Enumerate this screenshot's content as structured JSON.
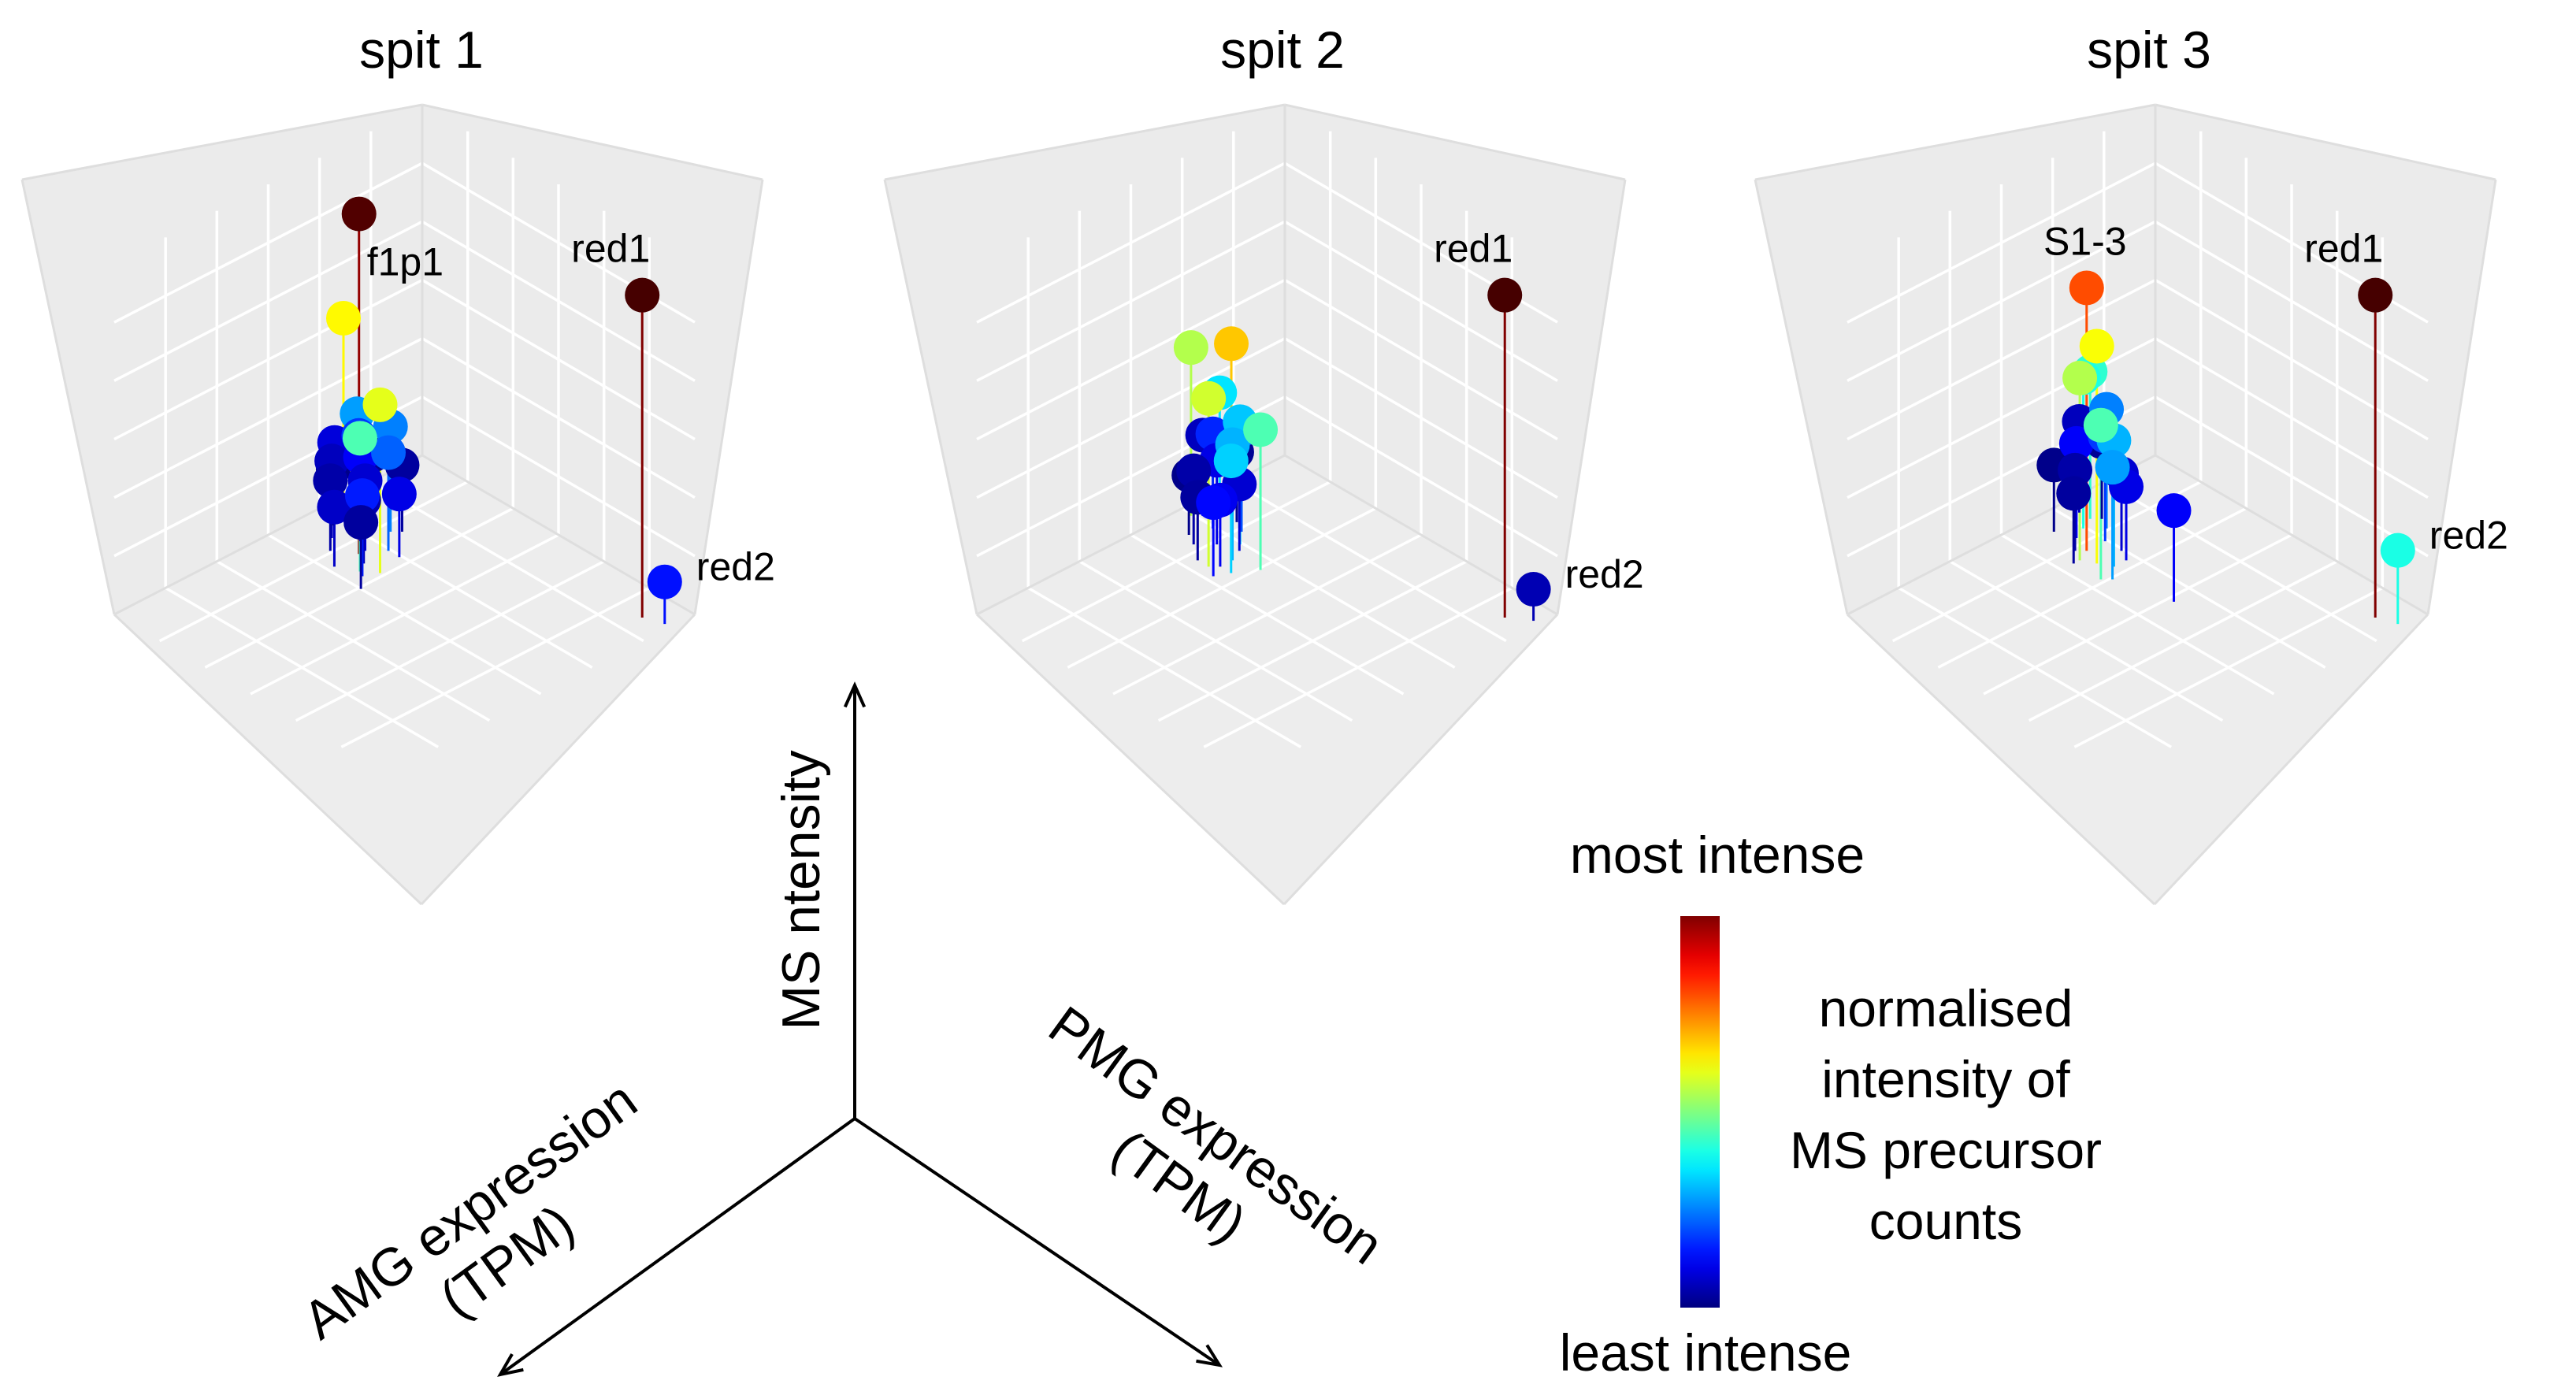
{
  "chart_data": {
    "type": "scatter3d",
    "description_axes": {
      "x": "AMG expression\n(TPM)",
      "y": "PMG expression\n(TPM)",
      "z": "MS ntensity"
    },
    "colorbar": {
      "top_label": "most intense",
      "bottom_label": "least intense",
      "title_lines": [
        "normalised",
        "intensity of",
        "MS precursor",
        "counts"
      ],
      "colormap": "jet"
    },
    "panels": [
      {
        "title": "spit 1",
        "points": [
          {
            "u": 0.4,
            "v": 0.22,
            "z": 0.97,
            "c": 0.98,
            "label": "f1p1"
          },
          {
            "u": 0.1,
            "v": 0.92,
            "z": 0.92,
            "c": 1.0,
            "label": "red1"
          },
          {
            "u": 0.08,
            "v": 0.98,
            "z": 0.12,
            "c": 0.14,
            "label": "red2"
          },
          {
            "u": 0.3,
            "v": 0.05,
            "z": 0.55,
            "c": 0.63
          },
          {
            "u": 0.42,
            "v": 0.32,
            "z": 0.48,
            "c": 0.6
          },
          {
            "u": 0.45,
            "v": 0.28,
            "z": 0.38,
            "c": 0.45
          },
          {
            "u": 0.28,
            "v": 0.2,
            "z": 0.3,
            "c": 0.25
          },
          {
            "u": 0.34,
            "v": 0.26,
            "z": 0.28,
            "c": 0.22
          },
          {
            "u": 0.3,
            "v": 0.1,
            "z": 0.3,
            "c": 0.28
          },
          {
            "u": 0.33,
            "v": 0.14,
            "z": 0.27,
            "c": 0.18
          },
          {
            "u": 0.36,
            "v": 0.18,
            "z": 0.24,
            "c": 0.12
          },
          {
            "u": 0.4,
            "v": 0.12,
            "z": 0.22,
            "c": 0.06
          },
          {
            "u": 0.3,
            "v": 0.16,
            "z": 0.21,
            "c": 0.02
          },
          {
            "u": 0.44,
            "v": 0.16,
            "z": 0.2,
            "c": 0.04
          },
          {
            "u": 0.38,
            "v": 0.22,
            "z": 0.2,
            "c": 0.08
          },
          {
            "u": 0.26,
            "v": 0.22,
            "z": 0.19,
            "c": 0.03
          },
          {
            "u": 0.34,
            "v": 0.3,
            "z": 0.18,
            "c": 0.1
          },
          {
            "u": 0.42,
            "v": 0.26,
            "z": 0.18,
            "c": 0.05
          },
          {
            "u": 0.48,
            "v": 0.22,
            "z": 0.17,
            "c": 0.07
          },
          {
            "u": 0.36,
            "v": 0.08,
            "z": 0.16,
            "c": 0.01
          },
          {
            "u": 0.32,
            "v": 0.04,
            "z": 0.2,
            "c": 0.09
          },
          {
            "u": 0.46,
            "v": 0.3,
            "z": 0.23,
            "c": 0.15
          },
          {
            "u": 0.5,
            "v": 0.34,
            "z": 0.19,
            "c": 0.03
          }
        ]
      },
      {
        "title": "spit 2",
        "points": [
          {
            "u": 0.1,
            "v": 0.92,
            "z": 0.92,
            "c": 1.0,
            "label": "red1"
          },
          {
            "u": 0.06,
            "v": 0.98,
            "z": 0.09,
            "c": 0.05,
            "label": "red2"
          },
          {
            "u": 0.34,
            "v": 0.04,
            "z": 0.48,
            "c": 0.55
          },
          {
            "u": 0.28,
            "v": 0.12,
            "z": 0.5,
            "c": 0.68
          },
          {
            "u": 0.46,
            "v": 0.24,
            "z": 0.48,
            "c": 0.58
          },
          {
            "u": 0.38,
            "v": 0.34,
            "z": 0.4,
            "c": 0.45
          },
          {
            "u": 0.3,
            "v": 0.1,
            "z": 0.36,
            "c": 0.35
          },
          {
            "u": 0.34,
            "v": 0.22,
            "z": 0.35,
            "c": 0.32
          },
          {
            "u": 0.4,
            "v": 0.26,
            "z": 0.33,
            "c": 0.3
          },
          {
            "u": 0.44,
            "v": 0.3,
            "z": 0.32,
            "c": 0.33
          },
          {
            "u": 0.3,
            "v": 0.18,
            "z": 0.29,
            "c": 0.2
          },
          {
            "u": 0.34,
            "v": 0.12,
            "z": 0.27,
            "c": 0.16
          },
          {
            "u": 0.38,
            "v": 0.18,
            "z": 0.24,
            "c": 0.1
          },
          {
            "u": 0.32,
            "v": 0.06,
            "z": 0.23,
            "c": 0.06
          },
          {
            "u": 0.42,
            "v": 0.14,
            "z": 0.21,
            "c": 0.04
          },
          {
            "u": 0.28,
            "v": 0.14,
            "z": 0.2,
            "c": 0.02
          },
          {
            "u": 0.36,
            "v": 0.24,
            "z": 0.19,
            "c": 0.08
          },
          {
            "u": 0.46,
            "v": 0.2,
            "z": 0.18,
            "c": 0.03
          },
          {
            "u": 0.4,
            "v": 0.1,
            "z": 0.17,
            "c": 0.01
          },
          {
            "u": 0.44,
            "v": 0.26,
            "z": 0.19,
            "c": 0.11
          },
          {
            "u": 0.48,
            "v": 0.28,
            "z": 0.21,
            "c": 0.13
          }
        ]
      },
      {
        "title": "spit 3",
        "points": [
          {
            "u": 0.1,
            "v": 0.92,
            "z": 0.92,
            "c": 1.0,
            "label": "red1"
          },
          {
            "u": 0.08,
            "v": 0.98,
            "z": 0.21,
            "c": 0.4,
            "label": "red2"
          },
          {
            "u": 0.4,
            "v": 0.2,
            "z": 0.75,
            "c": 0.8,
            "label": "S1-3"
          },
          {
            "u": 0.42,
            "v": 0.26,
            "z": 0.62,
            "c": 0.62
          },
          {
            "u": 0.44,
            "v": 0.22,
            "z": 0.52,
            "c": 0.55
          },
          {
            "u": 0.46,
            "v": 0.32,
            "z": 0.44,
            "c": 0.45
          },
          {
            "u": 0.3,
            "v": 0.1,
            "z": 0.42,
            "c": 0.42
          },
          {
            "u": 0.34,
            "v": 0.12,
            "z": 0.43,
            "c": 0.4
          },
          {
            "u": 0.4,
            "v": 0.3,
            "z": 0.36,
            "c": 0.3
          },
          {
            "u": 0.44,
            "v": 0.34,
            "z": 0.32,
            "c": 0.28
          },
          {
            "u": 0.3,
            "v": 0.16,
            "z": 0.34,
            "c": 0.25
          },
          {
            "u": 0.34,
            "v": 0.2,
            "z": 0.3,
            "c": 0.18
          },
          {
            "u": 0.38,
            "v": 0.14,
            "z": 0.27,
            "c": 0.12
          },
          {
            "u": 0.3,
            "v": 0.06,
            "z": 0.26,
            "c": 0.06
          },
          {
            "u": 0.42,
            "v": 0.18,
            "z": 0.23,
            "c": 0.04
          },
          {
            "u": 0.34,
            "v": 0.26,
            "z": 0.22,
            "c": 0.08
          },
          {
            "u": 0.28,
            "v": 0.12,
            "z": 0.22,
            "c": 0.02
          },
          {
            "u": 0.46,
            "v": 0.22,
            "z": 0.2,
            "c": 0.03
          },
          {
            "u": 0.4,
            "v": 0.08,
            "z": 0.19,
            "c": 0.01
          },
          {
            "u": 0.36,
            "v": 0.3,
            "z": 0.21,
            "c": 0.1
          },
          {
            "u": 0.4,
            "v": 0.52,
            "z": 0.26,
            "c": 0.12
          }
        ]
      }
    ]
  }
}
